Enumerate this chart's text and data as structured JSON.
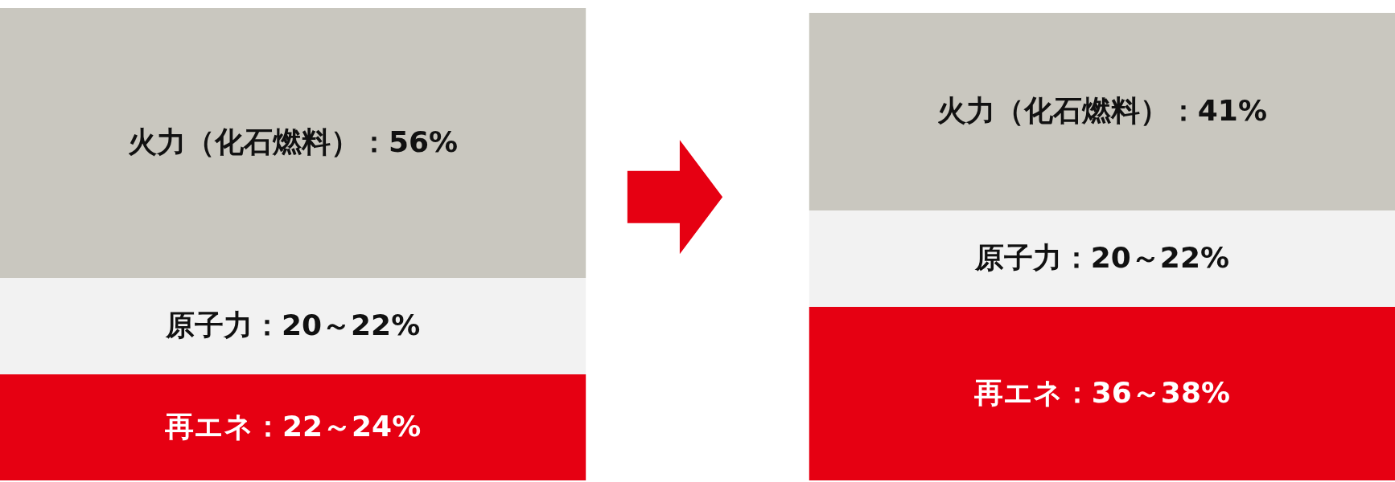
{
  "chart_data": {
    "type": "bar",
    "stacked": true,
    "categories": [
      null,
      null
    ],
    "tick_labels": false,
    "series": [
      {
        "color": "#e60012",
        "values": [
          22,
          36
        ],
        "value_labels": [
          "再エネ：22～24%",
          "再エネ：36～38%"
        ]
      },
      {
        "color": "#f2f2f2",
        "values": [
          20,
          20
        ],
        "value_labels": [
          "原子力：20～22%",
          "原子力：20～22%"
        ]
      },
      {
        "color": "#c9c7bf",
        "values": [
          56,
          41
        ],
        "value_labels": [
          "火力（化石燃料）：56%",
          "火力（化石燃料）：41%"
        ]
      }
    ]
  }
}
